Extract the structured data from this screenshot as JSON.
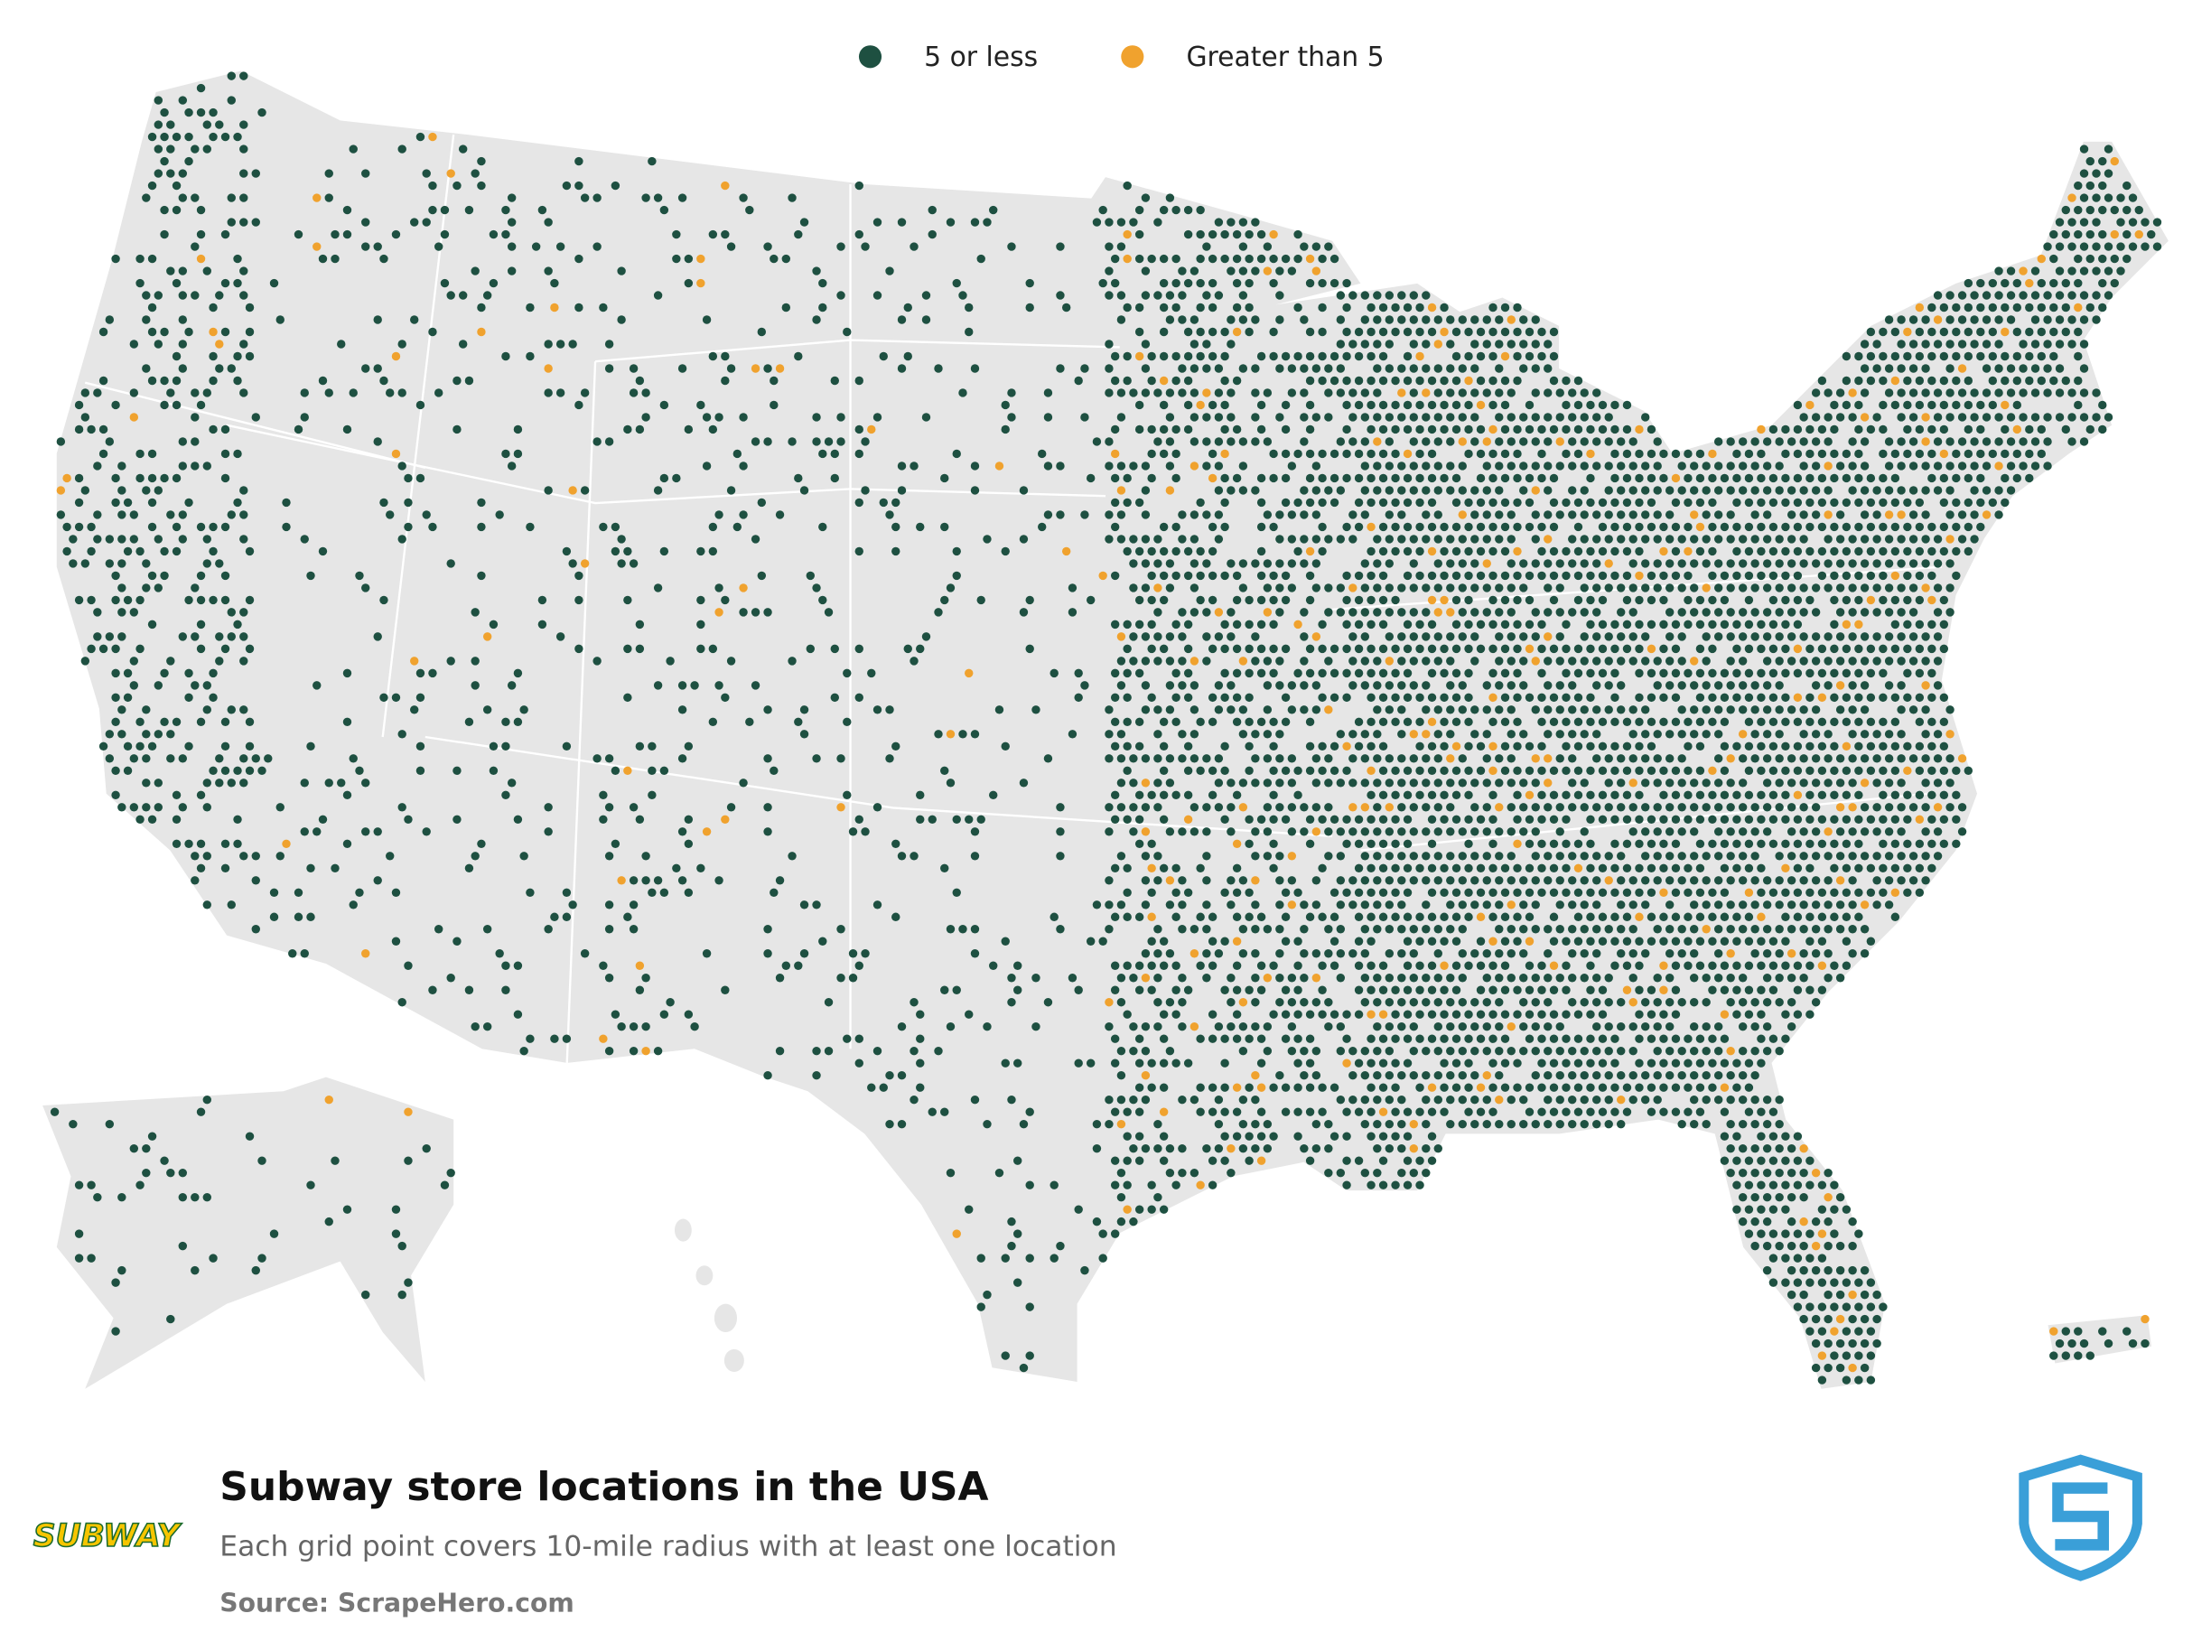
{
  "legend": [
    {
      "name": "5 or less",
      "color": "#1e5041"
    },
    {
      "name": "Greater than 5",
      "color": "#f0a22e"
    }
  ],
  "title": "Subway store locations in the USA",
  "subtitle": "Each grid point covers 10-mile radius with at least one location",
  "source": "Source: ScrapeHero.com",
  "logo": "SUBWAY"
}
